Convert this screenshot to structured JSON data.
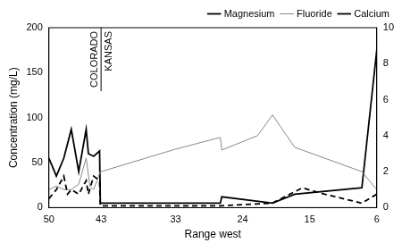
{
  "chart_data": {
    "type": "line",
    "x_label": "Range west",
    "y_label": "Concentration (mg/L)",
    "xlim": [
      50,
      6
    ],
    "xticks": [
      50,
      43,
      33,
      24,
      15,
      6
    ],
    "ylim": [
      0,
      200
    ],
    "yticks": [
      0,
      50,
      100,
      150,
      200
    ],
    "y2lim": [
      0,
      10
    ],
    "y2ticks": [
      0,
      2,
      4,
      6,
      8,
      10
    ],
    "grid": false,
    "legend": "top-right",
    "annotations": [
      {
        "text": "COLORADO",
        "x": 43,
        "side": "left"
      },
      {
        "text": "KANSAS",
        "x": 43,
        "side": "right"
      }
    ],
    "series": [
      {
        "name": "Magnesium",
        "color": "#000000",
        "line_style": "dashed",
        "axis": "y",
        "x": [
          50,
          49,
          48,
          47.5,
          47,
          46,
          45,
          44.7,
          44,
          43.2,
          43.1,
          33,
          27,
          20,
          16,
          13,
          8,
          6
        ],
        "values": [
          10,
          20,
          35,
          15,
          20,
          15,
          30,
          15,
          35,
          30,
          2,
          2,
          2,
          5,
          22,
          15,
          5,
          15
        ]
      },
      {
        "name": "Fluoride",
        "color": "#888888",
        "line_style": "solid",
        "axis": "y2",
        "x": [
          50,
          49,
          48,
          47,
          46,
          45,
          44.5,
          44,
          43.2,
          43.1,
          43,
          33,
          27,
          26.8,
          22,
          20,
          17,
          8,
          7,
          6
        ],
        "values": [
          1.0,
          1.2,
          1.0,
          1.0,
          1.3,
          2.75,
          1.2,
          1.0,
          1.9,
          2.0,
          2.0,
          3.25,
          3.9,
          3.2,
          4.0,
          5.15,
          3.35,
          2.0,
          1.5,
          1.0
        ]
      },
      {
        "name": "Calcium",
        "color": "#000000",
        "line_style": "solid",
        "axis": "y",
        "x": [
          50,
          49,
          48,
          47,
          46,
          45,
          44.7,
          44,
          43.2,
          43.1,
          38,
          33,
          27,
          26.8,
          20,
          17,
          8,
          6
        ],
        "values": [
          55,
          35,
          55,
          87,
          40,
          87,
          60,
          57,
          63,
          5,
          5,
          5,
          5,
          12,
          5,
          15,
          22,
          175
        ]
      }
    ]
  }
}
